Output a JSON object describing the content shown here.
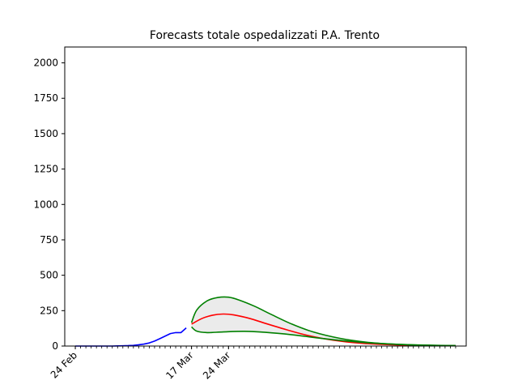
{
  "chart_data": {
    "type": "line",
    "title": "Forecasts totale ospedalizzati P.A. Trento",
    "xlabel": "",
    "ylabel": "",
    "x_start": "2020-02-24",
    "x_end": "2020-05-06",
    "xlim": [
      "2020-02-22",
      "2020-05-08"
    ],
    "ylim": [
      0,
      2112
    ],
    "x_tick_labels": [
      {
        "date": "2020-02-24",
        "label": "24 Feb"
      },
      {
        "date": "2020-03-17",
        "label": "17 Mar"
      },
      {
        "date": "2020-03-24",
        "label": "24 Mar"
      }
    ],
    "y_ticks": [
      0,
      250,
      500,
      750,
      1000,
      1250,
      1500,
      1750,
      2000
    ],
    "series": [
      {
        "role": "observed",
        "color": "#0000ff",
        "points": [
          [
            "2020-02-24",
            0
          ],
          [
            "2020-02-25",
            0
          ],
          [
            "2020-02-26",
            0
          ],
          [
            "2020-02-27",
            0
          ],
          [
            "2020-02-28",
            0
          ],
          [
            "2020-02-29",
            0
          ],
          [
            "2020-03-01",
            0
          ],
          [
            "2020-03-02",
            0
          ],
          [
            "2020-03-03",
            1
          ],
          [
            "2020-03-04",
            2
          ],
          [
            "2020-03-05",
            3
          ],
          [
            "2020-03-06",
            5
          ],
          [
            "2020-03-07",
            9
          ],
          [
            "2020-03-08",
            14
          ],
          [
            "2020-03-09",
            22
          ],
          [
            "2020-03-10",
            35
          ],
          [
            "2020-03-11",
            52
          ],
          [
            "2020-03-12",
            70
          ],
          [
            "2020-03-13",
            88
          ],
          [
            "2020-03-14",
            95
          ],
          [
            "2020-03-15",
            95
          ],
          [
            "2020-03-16",
            128
          ]
        ]
      },
      {
        "role": "forecast-median",
        "color": "#ff0000",
        "points": [
          [
            "2020-03-17",
            155
          ],
          [
            "2020-03-19",
            195
          ],
          [
            "2020-03-21",
            218
          ],
          [
            "2020-03-23",
            226
          ],
          [
            "2020-03-25",
            220
          ],
          [
            "2020-03-28",
            195
          ],
          [
            "2020-03-31",
            160
          ],
          [
            "2020-04-04",
            115
          ],
          [
            "2020-04-08",
            75
          ],
          [
            "2020-04-13",
            40
          ],
          [
            "2020-04-18",
            20
          ],
          [
            "2020-04-23",
            10
          ],
          [
            "2020-04-28",
            5
          ],
          [
            "2020-05-06",
            2
          ]
        ]
      },
      {
        "role": "forecast-upper",
        "color": "#008000",
        "points": [
          [
            "2020-03-17",
            165
          ],
          [
            "2020-03-18",
            255
          ],
          [
            "2020-03-20",
            320
          ],
          [
            "2020-03-22",
            343
          ],
          [
            "2020-03-24",
            345
          ],
          [
            "2020-03-26",
            325
          ],
          [
            "2020-03-29",
            280
          ],
          [
            "2020-04-01",
            225
          ],
          [
            "2020-04-05",
            155
          ],
          [
            "2020-04-09",
            100
          ],
          [
            "2020-04-14",
            55
          ],
          [
            "2020-04-19",
            28
          ],
          [
            "2020-04-24",
            14
          ],
          [
            "2020-04-30",
            6
          ],
          [
            "2020-05-06",
            3
          ]
        ]
      },
      {
        "role": "forecast-lower",
        "color": "#008000",
        "points": [
          [
            "2020-03-17",
            135
          ],
          [
            "2020-03-18",
            105
          ],
          [
            "2020-03-20",
            95
          ],
          [
            "2020-03-23",
            100
          ],
          [
            "2020-03-27",
            104
          ],
          [
            "2020-03-31",
            97
          ],
          [
            "2020-04-05",
            80
          ],
          [
            "2020-04-10",
            57
          ],
          [
            "2020-04-15",
            37
          ],
          [
            "2020-04-20",
            22
          ],
          [
            "2020-04-25",
            12
          ],
          [
            "2020-05-01",
            6
          ],
          [
            "2020-05-06",
            3
          ]
        ]
      }
    ],
    "band_fill_color": "#ebebeb",
    "grid": false,
    "legend": "none"
  }
}
